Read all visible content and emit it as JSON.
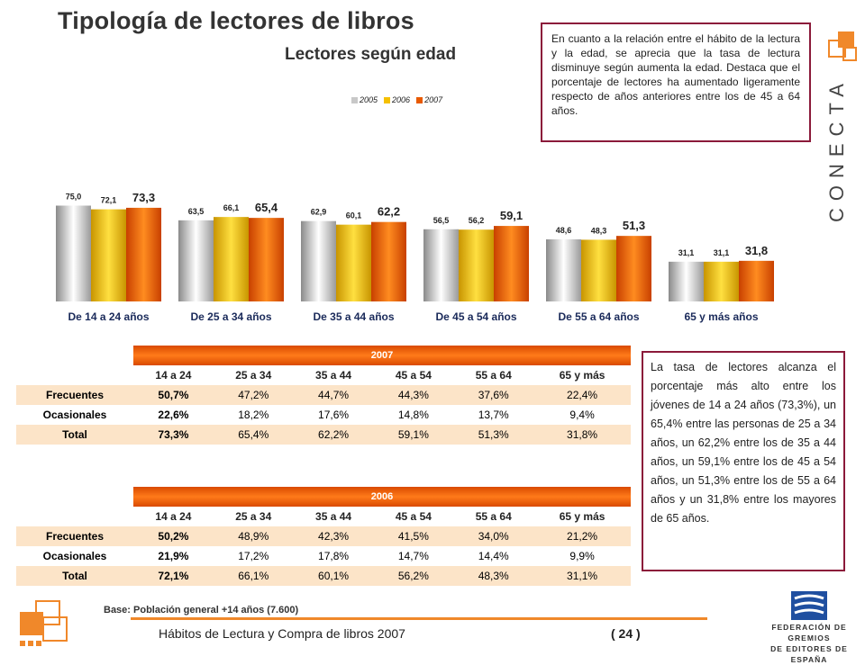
{
  "title": "Tipología de lectores de libros",
  "subtitle": "Lectores según edad",
  "box_text_1": "En cuanto a la relación entre el hábito de la lectura y la edad, se aprecia que la tasa de lectura disminuye según aumenta la edad. Destaca que el porcentaje de lectores ha aumentado ligeramente respecto de años anteriores entre los de 45 a 64 años.",
  "box_text_2": "La tasa de lectores alcanza el porcentaje más alto entre los jóvenes de 14 a 24 años (73,3%), un 65,4% entre las personas de 25 a 34 años, un 62,2% entre los de 35 a 44 años, un 59,1% entre los de 45 a 54 años, un 51,3% entre los de 55 a 64 años y un 31,8% entre los mayores de 65 años.",
  "brand": "CONECTA",
  "colors": {
    "accent": "#f0882a",
    "border": "#8b1a3a",
    "series_2005": "#c8c8c8",
    "series_2006": "#f5c000",
    "series_2007": "#e85a00"
  },
  "chart_data": {
    "type": "bar",
    "categories": [
      "De 14 a 24 años",
      "De 25 a 34 años",
      "De 35 a 44 años",
      "De 45 a 54 años",
      "De 55 a 64 años",
      "65 y más años"
    ],
    "series": [
      {
        "name": "2005",
        "values": [
          75.0,
          63.5,
          62.9,
          56.5,
          48.6,
          31.1
        ],
        "labels": [
          "75,0",
          "63,5",
          "62,9",
          "56,5",
          "48,6",
          "31,1"
        ]
      },
      {
        "name": "2006",
        "values": [
          72.1,
          66.1,
          60.1,
          56.2,
          48.3,
          31.1
        ],
        "labels": [
          "72,1",
          "66,1",
          "60,1",
          "56,2",
          "48,3",
          "31,1"
        ]
      },
      {
        "name": "2007",
        "values": [
          73.3,
          65.4,
          62.2,
          59.1,
          51.3,
          31.8
        ],
        "labels": [
          "73,3",
          "65,4",
          "62,2",
          "59,1",
          "51,3",
          "31,8"
        ]
      }
    ],
    "title": "",
    "xlabel": "",
    "ylabel": "",
    "grid": false,
    "legend": "top"
  },
  "tables": [
    {
      "year": "2007",
      "headers": [
        "14 a 24",
        "25 a 34",
        "35 a 44",
        "45 a 54",
        "55 a 64",
        "65 y más"
      ],
      "rows": [
        {
          "label": "Frecuentes",
          "values": [
            "50,7%",
            "47,2%",
            "44,7%",
            "44,3%",
            "37,6%",
            "22,4%"
          ]
        },
        {
          "label": "Ocasionales",
          "values": [
            "22,6%",
            "18,2%",
            "17,6%",
            "14,8%",
            "13,7%",
            "9,4%"
          ]
        },
        {
          "label": "Total",
          "values": [
            "73,3%",
            "65,4%",
            "62,2%",
            "59,1%",
            "51,3%",
            "31,8%"
          ]
        }
      ]
    },
    {
      "year": "2006",
      "headers": [
        "14 a 24",
        "25 a 34",
        "35 a 44",
        "45 a 54",
        "55 a 64",
        "65 y más"
      ],
      "rows": [
        {
          "label": "Frecuentes",
          "values": [
            "50,2%",
            "48,9%",
            "42,3%",
            "41,5%",
            "34,0%",
            "21,2%"
          ]
        },
        {
          "label": "Ocasionales",
          "values": [
            "21,9%",
            "17,2%",
            "17,8%",
            "14,7%",
            "14,4%",
            "9,9%"
          ]
        },
        {
          "label": "Total",
          "values": [
            "72,1%",
            "66,1%",
            "60,1%",
            "56,2%",
            "48,3%",
            "31,1%"
          ]
        }
      ]
    }
  ],
  "base_label": "Base:",
  "base_value": "Población general +14 años (7.600)",
  "footer": "Hábitos de Lectura y Compra de libros 2007",
  "page_number": "( 24 )",
  "federation": {
    "line1": "FEDERACIÓN DE GREMIOS",
    "line2": "DE EDITORES DE ESPAÑA"
  }
}
